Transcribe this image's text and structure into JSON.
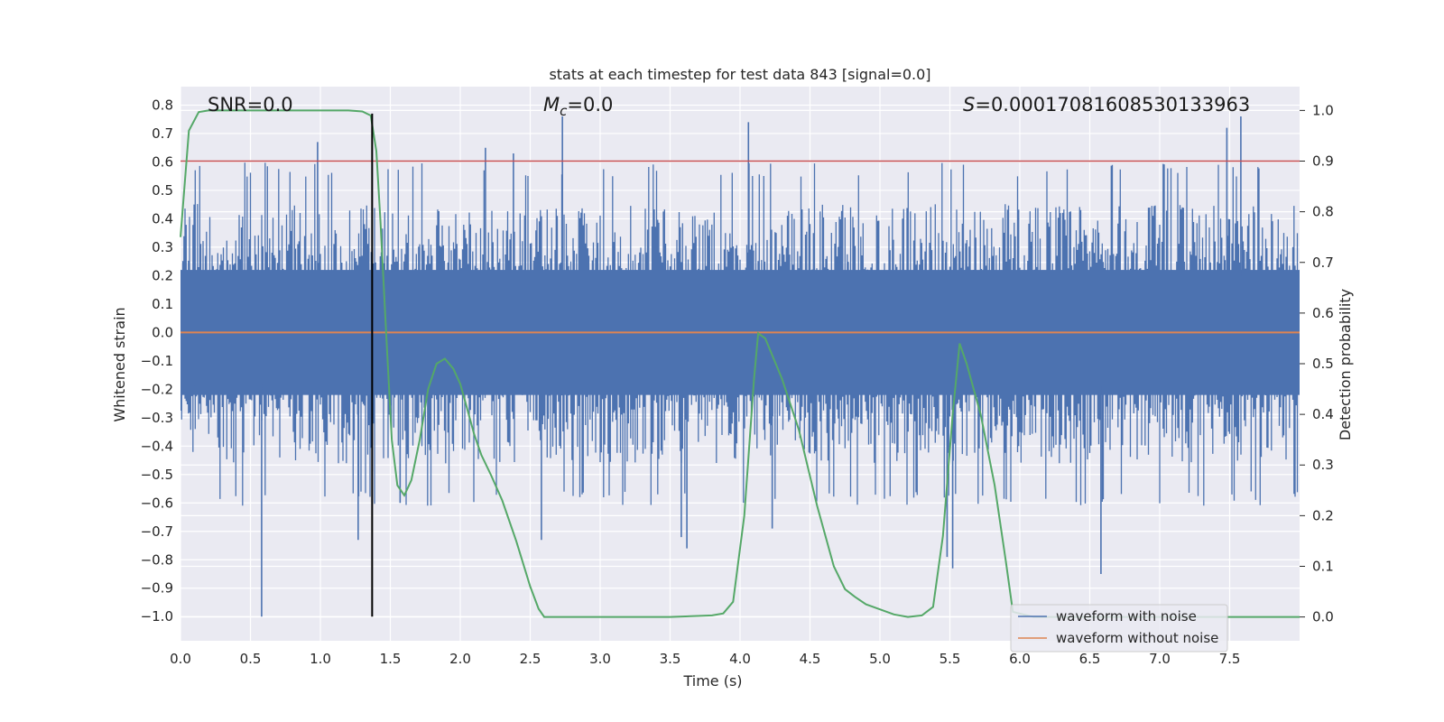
{
  "chart_data": {
    "type": "line",
    "title": "stats at each timestep for test data 843 [signal=0.0]",
    "xlabel": "Time (s)",
    "ylabel": "Whitened strain",
    "y2label": "Detection probability",
    "xlim": [
      0.0,
      8.0
    ],
    "ylim": [
      -1.085,
      0.865
    ],
    "y2lim": [
      -0.047,
      1.047
    ],
    "grid": true,
    "x_ticks": [
      "0.0",
      "0.5",
      "1.0",
      "1.5",
      "2.0",
      "2.5",
      "3.0",
      "3.5",
      "4.0",
      "4.5",
      "5.0",
      "5.5",
      "6.0",
      "6.5",
      "7.0",
      "7.5"
    ],
    "y_ticks": [
      "0.8",
      "0.7",
      "0.6",
      "0.5",
      "0.4",
      "0.3",
      "0.2",
      "0.1",
      "0.0",
      "-0.1",
      "-0.2",
      "-0.3",
      "-0.4",
      "-0.5",
      "-0.6",
      "-0.7",
      "-0.8",
      "-0.9",
      "-1.0"
    ],
    "y2_ticks": [
      "1.0",
      "0.9",
      "0.8",
      "0.7",
      "0.6",
      "0.5",
      "0.4",
      "0.3",
      "0.2",
      "0.1",
      "0.0"
    ],
    "annotations": {
      "snr": "SNR=0.0",
      "mc_symbol": "M",
      "mc_sub": "c",
      "mc_value": "=0.0",
      "s_symbol": "S",
      "s_value": "=0.0001708160853013396​3"
    },
    "threshold": {
      "value": 0.9,
      "axis": "y2",
      "color": "#c44e52"
    },
    "marker_line": {
      "x": 1.37,
      "y_from": -1.0,
      "y_to": 0.77,
      "color": "#000000"
    },
    "legend": {
      "placement": "lower right",
      "entries": [
        "waveform with noise",
        "waveform without noise"
      ]
    },
    "series": [
      {
        "name": "waveform with noise",
        "color": "#4c72b0",
        "kind": "noise",
        "typical_upper": 0.37,
        "typical_lower": -0.38,
        "spikes": [
          [
            0.58,
            -1.0
          ],
          [
            1.27,
            -0.73
          ],
          [
            1.37,
            -0.49
          ],
          [
            1.57,
            -0.6
          ],
          [
            2.18,
            0.65
          ],
          [
            2.38,
            0.63
          ],
          [
            2.58,
            -0.73
          ],
          [
            2.73,
            0.76
          ],
          [
            3.58,
            -0.72
          ],
          [
            3.62,
            -0.76
          ],
          [
            4.06,
            0.74
          ],
          [
            4.23,
            -0.69
          ],
          [
            5.48,
            -0.79
          ],
          [
            5.52,
            -0.83
          ],
          [
            6.58,
            -0.85
          ],
          [
            7.48,
            0.72
          ],
          [
            7.58,
            0.76
          ],
          [
            0.98,
            0.67
          ]
        ]
      },
      {
        "name": "waveform without noise",
        "color": "#dd8452",
        "x": [
          0.0,
          8.0
        ],
        "y": [
          0.0,
          0.0
        ]
      },
      {
        "name": "Detection probability",
        "axis": "y2",
        "color": "#55a868",
        "x": [
          0.0,
          0.06,
          0.13,
          0.2,
          0.4,
          0.6,
          0.8,
          1.0,
          1.2,
          1.3,
          1.36,
          1.4,
          1.43,
          1.47,
          1.51,
          1.55,
          1.6,
          1.65,
          1.71,
          1.77,
          1.83,
          1.89,
          1.95,
          2.0,
          2.05,
          2.1,
          2.15,
          2.22,
          2.3,
          2.4,
          2.5,
          2.56,
          2.6,
          2.7,
          3.0,
          3.5,
          3.8,
          3.88,
          3.95,
          4.03,
          4.1,
          4.13,
          4.18,
          4.3,
          4.42,
          4.55,
          4.67,
          4.75,
          4.82,
          4.9,
          5.0,
          5.1,
          5.2,
          5.3,
          5.38,
          5.45,
          5.52,
          5.57,
          5.62,
          5.72,
          5.82,
          5.9,
          5.95,
          6.1,
          8.0
        ],
        "y": [
          0.75,
          0.96,
          0.997,
          1.0,
          1.0,
          1.0,
          1.0,
          1.0,
          1.0,
          0.998,
          0.99,
          0.92,
          0.78,
          0.56,
          0.35,
          0.26,
          0.24,
          0.27,
          0.35,
          0.45,
          0.5,
          0.51,
          0.49,
          0.46,
          0.41,
          0.36,
          0.32,
          0.28,
          0.23,
          0.15,
          0.06,
          0.016,
          0.0,
          0.0,
          0.0,
          0.0,
          0.003,
          0.007,
          0.03,
          0.2,
          0.47,
          0.56,
          0.55,
          0.47,
          0.37,
          0.22,
          0.1,
          0.055,
          0.04,
          0.025,
          0.015,
          0.005,
          0.0,
          0.003,
          0.02,
          0.16,
          0.4,
          0.54,
          0.5,
          0.4,
          0.26,
          0.11,
          0.01,
          0.0,
          0.0
        ]
      }
    ]
  }
}
